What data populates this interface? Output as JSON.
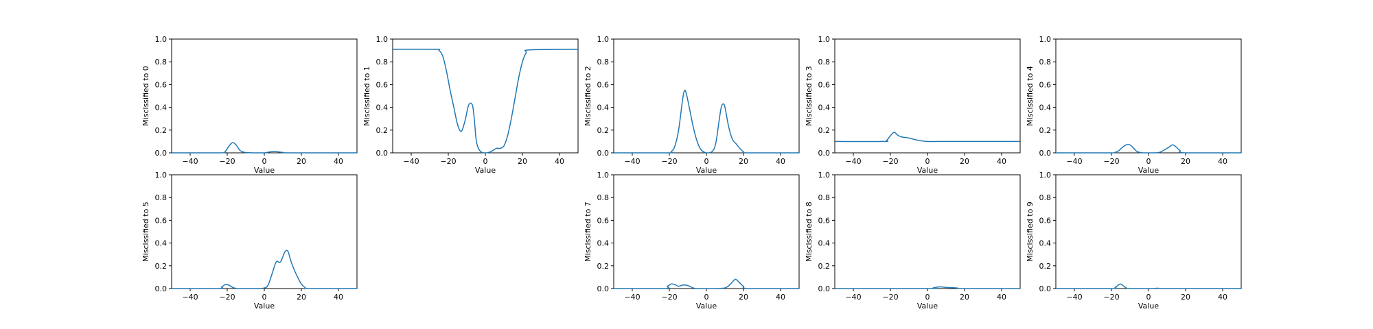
{
  "chart_data": [
    {
      "type": "line",
      "xlabel": "Value",
      "ylabel": "Misclssified to 0",
      "xlim": [
        -50,
        50
      ],
      "ylim": [
        0,
        1
      ],
      "xticks": [
        -40,
        -20,
        0,
        20,
        40
      ],
      "yticks": [
        0.0,
        0.2,
        0.4,
        0.6,
        0.8,
        1.0
      ],
      "color": "#1f77b4",
      "series": [
        {
          "x": [
            -50,
            -24,
            -21,
            -19,
            -17,
            -15,
            -13,
            -10,
            -5,
            0,
            3,
            5,
            7,
            10,
            15,
            50
          ],
          "y": [
            0,
            0,
            0.015,
            0.06,
            0.09,
            0.065,
            0.02,
            0.003,
            0,
            0,
            0.008,
            0.012,
            0.01,
            0.004,
            0,
            0
          ]
        }
      ]
    },
    {
      "type": "line",
      "xlabel": "Value",
      "ylabel": "Misclssified to 1",
      "xlim": [
        -50,
        50
      ],
      "ylim": [
        0,
        1
      ],
      "xticks": [
        -40,
        -20,
        0,
        20,
        40
      ],
      "yticks": [
        0.0,
        0.2,
        0.4,
        0.6,
        0.8,
        1.0
      ],
      "color": "#1f77b4",
      "series": [
        {
          "x": [
            -50,
            -27,
            -25,
            -23,
            -21,
            -19,
            -17,
            -15,
            -13,
            -11,
            -9,
            -7,
            -6,
            -5,
            -4,
            -3,
            -2,
            0,
            2,
            4,
            6,
            8,
            10,
            12,
            14,
            16,
            18,
            20,
            22,
            24,
            50
          ],
          "y": [
            0.91,
            0.91,
            0.9,
            0.85,
            0.72,
            0.55,
            0.4,
            0.25,
            0.19,
            0.28,
            0.42,
            0.42,
            0.3,
            0.12,
            0.05,
            0.02,
            0.005,
            0,
            0.005,
            0.02,
            0.04,
            0.04,
            0.06,
            0.15,
            0.3,
            0.48,
            0.66,
            0.8,
            0.88,
            0.905,
            0.91
          ]
        }
      ]
    },
    {
      "type": "line",
      "xlabel": "Value",
      "ylabel": "Misclssified to 2",
      "xlim": [
        -50,
        50
      ],
      "ylim": [
        0,
        1
      ],
      "xticks": [
        -40,
        -20,
        0,
        20,
        40
      ],
      "yticks": [
        0.0,
        0.2,
        0.4,
        0.6,
        0.8,
        1.0
      ],
      "color": "#1f77b4",
      "series": [
        {
          "x": [
            -50,
            -21,
            -19,
            -17,
            -15,
            -13,
            -12,
            -11,
            -9,
            -7,
            -5,
            -3,
            -1,
            1,
            3,
            5,
            7,
            8,
            9,
            10,
            12,
            14,
            16,
            18,
            20,
            23,
            50
          ],
          "y": [
            0,
            0,
            0.01,
            0.06,
            0.2,
            0.45,
            0.54,
            0.53,
            0.38,
            0.22,
            0.1,
            0.03,
            0.005,
            0,
            0.01,
            0.08,
            0.3,
            0.4,
            0.43,
            0.4,
            0.23,
            0.12,
            0.08,
            0.04,
            0.01,
            0,
            0
          ]
        }
      ]
    },
    {
      "type": "line",
      "xlabel": "Value",
      "ylabel": "Misclssified to 3",
      "xlim": [
        -50,
        50
      ],
      "ylim": [
        0,
        1
      ],
      "xticks": [
        -40,
        -20,
        0,
        20,
        40
      ],
      "yticks": [
        0.0,
        0.2,
        0.4,
        0.6,
        0.8,
        1.0
      ],
      "color": "#1f77b4",
      "series": [
        {
          "x": [
            -50,
            -24,
            -22,
            -20,
            -18,
            -16,
            -14,
            -10,
            -5,
            0,
            5,
            10,
            15,
            20,
            50
          ],
          "y": [
            0.1,
            0.1,
            0.11,
            0.15,
            0.18,
            0.155,
            0.14,
            0.13,
            0.11,
            0.1,
            0.1,
            0.1,
            0.1,
            0.1,
            0.1
          ]
        }
      ]
    },
    {
      "type": "line",
      "xlabel": "Value",
      "ylabel": "Misclssified to 4",
      "xlim": [
        -50,
        50
      ],
      "ylim": [
        0,
        1
      ],
      "xticks": [
        -40,
        -20,
        0,
        20,
        40
      ],
      "yticks": [
        0.0,
        0.2,
        0.4,
        0.6,
        0.8,
        1.0
      ],
      "color": "#1f77b4",
      "series": [
        {
          "x": [
            -50,
            -21,
            -18,
            -16,
            -14,
            -12,
            -10,
            -8,
            -6,
            -3,
            0,
            3,
            6,
            9,
            11,
            13,
            15,
            17,
            20,
            50
          ],
          "y": [
            0,
            0,
            0.005,
            0.02,
            0.05,
            0.07,
            0.07,
            0.04,
            0.01,
            0,
            0,
            0,
            0.005,
            0.03,
            0.05,
            0.07,
            0.05,
            0.02,
            0,
            0
          ]
        }
      ]
    },
    {
      "type": "line",
      "xlabel": "Value",
      "ylabel": "Misclssified to 5",
      "xlim": [
        -50,
        50
      ],
      "ylim": [
        0,
        1
      ],
      "xticks": [
        -40,
        -20,
        0,
        20,
        40
      ],
      "yticks": [
        0.0,
        0.2,
        0.4,
        0.6,
        0.8,
        1.0
      ],
      "color": "#1f77b4",
      "series": [
        {
          "x": [
            -50,
            -25,
            -23,
            -21,
            -19,
            -17,
            -14,
            -5,
            0,
            2,
            4,
            6,
            7,
            8,
            9,
            10,
            11,
            12,
            13,
            14,
            16,
            18,
            20,
            22,
            25,
            50
          ],
          "y": [
            0,
            0,
            0.015,
            0.035,
            0.03,
            0.01,
            0,
            0,
            0.005,
            0.03,
            0.12,
            0.22,
            0.24,
            0.23,
            0.24,
            0.28,
            0.32,
            0.335,
            0.32,
            0.26,
            0.17,
            0.1,
            0.04,
            0.01,
            0,
            0
          ]
        }
      ]
    },
    {
      "type": "line",
      "xlabel": "Value",
      "ylabel": "Misclssified to 7",
      "xlim": [
        -50,
        50
      ],
      "ylim": [
        0,
        1
      ],
      "xticks": [
        -40,
        -20,
        0,
        20,
        40
      ],
      "yticks": [
        0.0,
        0.2,
        0.4,
        0.6,
        0.8,
        1.0
      ],
      "color": "#1f77b4",
      "series": [
        {
          "x": [
            -50,
            -23,
            -21,
            -19,
            -17,
            -15,
            -13,
            -11,
            -9,
            -7,
            -4,
            5,
            10,
            13,
            15,
            16,
            18,
            20,
            23,
            50
          ],
          "y": [
            0,
            0,
            0.02,
            0.04,
            0.035,
            0.02,
            0.03,
            0.03,
            0.02,
            0.005,
            0,
            0,
            0.005,
            0.04,
            0.075,
            0.08,
            0.05,
            0.02,
            0,
            0
          ]
        }
      ]
    },
    {
      "type": "line",
      "xlabel": "Value",
      "ylabel": "Misclssified to 8",
      "xlim": [
        -50,
        50
      ],
      "ylim": [
        0,
        1
      ],
      "xticks": [
        -40,
        -20,
        0,
        20,
        40
      ],
      "yticks": [
        0.0,
        0.2,
        0.4,
        0.6,
        0.8,
        1.0
      ],
      "color": "#1f77b4",
      "series": [
        {
          "x": [
            -50,
            0,
            3,
            5,
            7,
            10,
            13,
            16,
            20,
            50
          ],
          "y": [
            0,
            0,
            0.005,
            0.012,
            0.015,
            0.01,
            0.008,
            0.005,
            0,
            0
          ]
        }
      ]
    },
    {
      "type": "line",
      "xlabel": "Value",
      "ylabel": "Misclssified to 9",
      "xlim": [
        -50,
        50
      ],
      "ylim": [
        0,
        1
      ],
      "xticks": [
        -40,
        -20,
        0,
        20,
        40
      ],
      "yticks": [
        0.0,
        0.2,
        0.4,
        0.6,
        0.8,
        1.0
      ],
      "color": "#1f77b4",
      "series": [
        {
          "x": [
            -50,
            -20,
            -18,
            -16,
            -15,
            -14,
            -12,
            -10,
            0,
            5,
            10,
            50
          ],
          "y": [
            0,
            0,
            0.01,
            0.035,
            0.04,
            0.03,
            0.005,
            0,
            0,
            0.003,
            0,
            0
          ]
        }
      ]
    }
  ]
}
